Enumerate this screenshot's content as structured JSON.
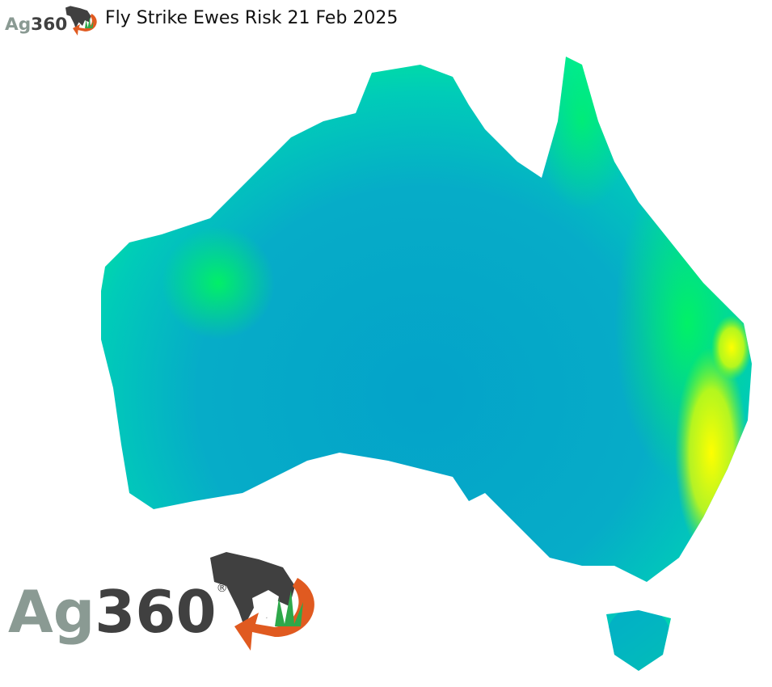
{
  "header": {
    "title": "Fly Strike Ewes Risk 21 Feb 2025"
  },
  "logo": {
    "text_ag": "Ag",
    "text_num": "360",
    "mark": "®"
  },
  "map": {
    "region": "Australia",
    "colors": {
      "low": "#04a3c9",
      "mid": "#00e0a8",
      "high": "#00ff40",
      "very_high": "#ffff00"
    }
  }
}
